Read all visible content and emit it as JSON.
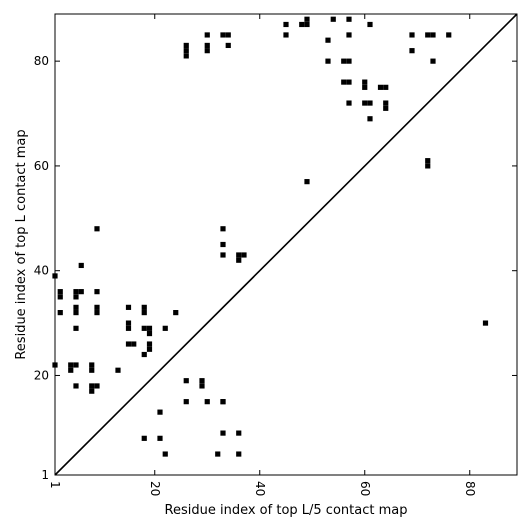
{
  "chart_data": {
    "type": "heatmap",
    "title": "",
    "xlabel": "Residue index of top L/5 contact map",
    "ylabel": "Residue index of top L contact map",
    "xlim": [
      1,
      89
    ],
    "ylim": [
      1,
      89
    ],
    "x_ticks": [
      1,
      20,
      40,
      60,
      80
    ],
    "y_ticks": [
      1,
      20,
      40,
      60,
      80
    ],
    "x_tick_labels": [
      "1",
      "20",
      "40",
      "60",
      "80"
    ],
    "y_tick_labels": [
      "1",
      "20",
      "40",
      "60",
      "80"
    ],
    "x_tick_rotation": "vertical",
    "diagonal_line": true,
    "upper_left_points": [
      [
        1,
        22
      ],
      [
        1,
        39
      ],
      [
        2,
        35
      ],
      [
        2,
        36
      ],
      [
        2,
        32
      ],
      [
        4,
        21
      ],
      [
        4,
        22
      ],
      [
        5,
        22
      ],
      [
        5,
        18
      ],
      [
        5,
        29
      ],
      [
        5,
        32
      ],
      [
        5,
        33
      ],
      [
        5,
        35
      ],
      [
        5,
        36
      ],
      [
        6,
        36
      ],
      [
        6,
        41
      ],
      [
        8,
        21
      ],
      [
        8,
        22
      ],
      [
        8,
        17
      ],
      [
        8,
        18
      ],
      [
        9,
        18
      ],
      [
        9,
        32
      ],
      [
        9,
        33
      ],
      [
        9,
        36
      ],
      [
        9,
        48
      ],
      [
        13,
        21
      ],
      [
        15,
        26
      ],
      [
        15,
        29
      ],
      [
        15,
        30
      ],
      [
        15,
        33
      ],
      [
        16,
        26
      ],
      [
        18,
        24
      ],
      [
        18,
        29
      ],
      [
        18,
        32
      ],
      [
        18,
        33
      ],
      [
        19,
        25
      ],
      [
        19,
        26
      ],
      [
        19,
        28
      ],
      [
        19,
        29
      ],
      [
        22,
        29
      ],
      [
        24,
        32
      ],
      [
        26,
        15
      ],
      [
        26,
        19
      ],
      [
        26,
        81
      ],
      [
        26,
        82
      ],
      [
        26,
        83
      ],
      [
        29,
        18
      ],
      [
        29,
        19
      ],
      [
        30,
        15
      ],
      [
        30,
        82
      ],
      [
        30,
        83
      ],
      [
        30,
        85
      ],
      [
        33,
        15
      ],
      [
        33,
        43
      ],
      [
        33,
        45
      ],
      [
        33,
        48
      ],
      [
        33,
        85
      ],
      [
        34,
        83
      ],
      [
        34,
        85
      ],
      [
        36,
        42
      ],
      [
        36,
        43
      ],
      [
        37,
        43
      ],
      [
        45,
        85
      ],
      [
        45,
        87
      ],
      [
        48,
        87
      ],
      [
        49,
        87
      ],
      [
        49,
        88
      ],
      [
        49,
        57
      ],
      [
        53,
        80
      ],
      [
        53,
        84
      ],
      [
        54,
        88
      ],
      [
        56,
        80
      ],
      [
        56,
        76
      ],
      [
        57,
        72
      ],
      [
        57,
        76
      ],
      [
        57,
        80
      ],
      [
        57,
        85
      ],
      [
        57,
        88
      ],
      [
        60,
        72
      ],
      [
        60,
        75
      ],
      [
        60,
        76
      ],
      [
        61,
        72
      ],
      [
        61,
        69
      ],
      [
        61,
        87
      ],
      [
        63,
        75
      ],
      [
        64,
        75
      ],
      [
        64,
        71
      ],
      [
        64,
        72
      ],
      [
        69,
        82
      ],
      [
        69,
        85
      ],
      [
        72,
        60
      ],
      [
        72,
        61
      ],
      [
        72,
        85
      ],
      [
        73,
        80
      ],
      [
        73,
        85
      ],
      [
        76,
        85
      ]
    ],
    "lower_right_points": [
      [
        18,
        8
      ],
      [
        21,
        8
      ],
      [
        21,
        13
      ],
      [
        22,
        5
      ],
      [
        32,
        5
      ],
      [
        33,
        9
      ],
      [
        33,
        15
      ],
      [
        36,
        9
      ],
      [
        36,
        5
      ],
      [
        83,
        30
      ]
    ]
  }
}
